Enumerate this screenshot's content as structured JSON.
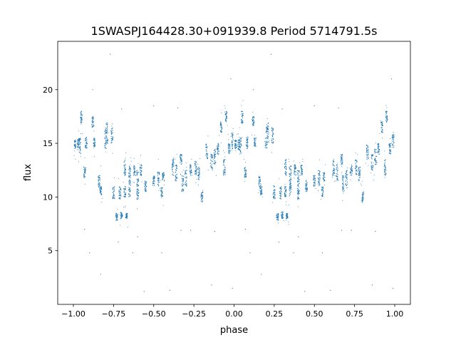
{
  "chart_data": {
    "type": "scatter",
    "title": "1SWASPJ164428.30+091939.8 Period 5714791.5s",
    "xlabel": "phase",
    "ylabel": "flux",
    "xlim": [
      -1.0976,
      1.0976
    ],
    "ylim": [
      0.0,
      24.5
    ],
    "xticks": [
      -1.0,
      -0.75,
      -0.5,
      -0.25,
      0.0,
      0.25,
      0.5,
      0.75,
      1.0
    ],
    "xtick_labels": [
      "−1.00",
      "−0.75",
      "−0.50",
      "−0.25",
      "0.00",
      "0.25",
      "0.50",
      "0.75",
      "1.00"
    ],
    "yticks": [
      5,
      10,
      15,
      20
    ],
    "ytick_labels": [
      "5",
      "10",
      "15",
      "20"
    ],
    "grid": false,
    "color": "#1f77b4",
    "note_repeat_offset": 1,
    "streaks_phase_flux_range": [
      [
        -0.99,
        14.5,
        15.3
      ],
      [
        -0.97,
        14.4,
        15.4
      ],
      [
        -0.95,
        16.8,
        18.0
      ],
      [
        -0.96,
        14.0,
        15.5
      ],
      [
        -0.93,
        11.8,
        12.8
      ],
      [
        -0.92,
        14.5,
        15.6
      ],
      [
        -0.88,
        16.5,
        17.5
      ],
      [
        -0.87,
        14.7,
        15.5
      ],
      [
        -0.84,
        10.8,
        12.0
      ],
      [
        -0.83,
        10.2,
        11.0
      ],
      [
        -0.8,
        14.5,
        16.5
      ],
      [
        -0.79,
        15.0,
        17.0
      ],
      [
        -0.76,
        15.0,
        16.5
      ],
      [
        -0.75,
        9.8,
        11.0
      ],
      [
        -0.73,
        7.8,
        8.5
      ],
      [
        -0.7,
        8.0,
        8.6
      ],
      [
        -0.67,
        8.0,
        8.5
      ],
      [
        -0.71,
        9.8,
        11.0
      ],
      [
        -0.68,
        10.0,
        11.0
      ],
      [
        -0.65,
        10.0,
        11.5
      ],
      [
        -0.68,
        12.0,
        13.5
      ],
      [
        -0.65,
        11.5,
        13.0
      ],
      [
        -0.62,
        12.0,
        13.0
      ],
      [
        -0.6,
        11.0,
        12.5
      ],
      [
        -0.58,
        12.0,
        13.0
      ],
      [
        -0.6,
        9.8,
        10.8
      ],
      [
        -0.55,
        10.5,
        11.5
      ],
      [
        -0.5,
        11.0,
        12.0
      ],
      [
        -0.47,
        11.0,
        12.5
      ],
      [
        -0.44,
        11.5,
        12.3
      ],
      [
        -0.45,
        10.0,
        11.0
      ],
      [
        -0.38,
        12.0,
        13.5
      ],
      [
        -0.36,
        11.5,
        13.0
      ],
      [
        -0.33,
        13.0,
        14.0
      ],
      [
        -0.32,
        10.5,
        12.0
      ],
      [
        -0.3,
        11.0,
        12.5
      ],
      [
        -0.27,
        12.0,
        13.0
      ],
      [
        -0.24,
        12.0,
        13.5
      ],
      [
        -0.22,
        11.5,
        12.8
      ],
      [
        -0.2,
        9.5,
        10.5
      ],
      [
        -0.17,
        13.5,
        15.0
      ],
      [
        -0.14,
        12.5,
        14.0
      ],
      [
        -0.12,
        13.0,
        14.5
      ],
      [
        -0.1,
        14.0,
        15.0
      ],
      [
        -0.08,
        16.0,
        17.0
      ],
      [
        -0.05,
        17.0,
        18.0
      ],
      [
        -0.06,
        12.0,
        13.5
      ],
      [
        -0.03,
        14.0,
        15.0
      ],
      [
        -0.01,
        14.5,
        16.0
      ]
    ],
    "outliers_phase_flux": [
      [
        -0.88,
        20.0
      ],
      [
        -0.77,
        23.3
      ],
      [
        -0.72,
        5.8
      ],
      [
        -0.63,
        4.8
      ],
      [
        -0.56,
        1.2
      ],
      [
        -0.45,
        4.8
      ],
      [
        -0.4,
        1.3
      ],
      [
        -0.33,
        6.9
      ],
      [
        -0.27,
        6.9
      ],
      [
        -0.14,
        1.8
      ],
      [
        -0.02,
        21.0
      ],
      [
        -0.01,
        1.5
      ],
      [
        -0.83,
        2.8
      ],
      [
        -0.93,
        7.0
      ],
      [
        -0.6,
        6.3
      ],
      [
        -0.12,
        6.8
      ],
      [
        -0.7,
        18.2
      ],
      [
        -0.35,
        18.3
      ],
      [
        -0.5,
        18.5
      ],
      [
        -0.9,
        4.8
      ]
    ]
  }
}
